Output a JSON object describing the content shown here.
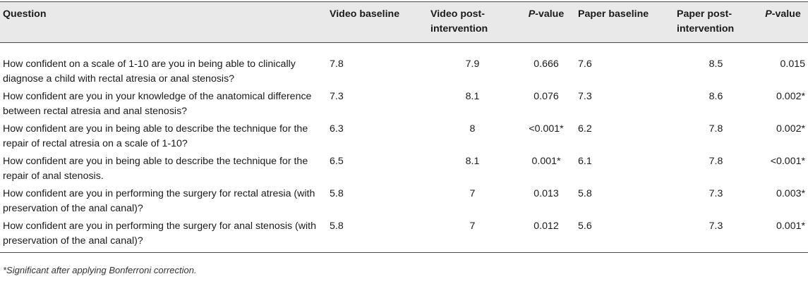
{
  "headers": {
    "question": "Question",
    "video_baseline": "Video baseline",
    "video_post": "Video post-intervention",
    "pvalue_italic": "P",
    "pvalue_rest": "-value",
    "paper_baseline": "Paper baseline",
    "paper_post": "Paper post-intervention"
  },
  "rows": [
    {
      "question": "How confident on a scale of 1-10 are you in being able to clinically diagnose a child with rectal atresia or anal stenosis?",
      "video_baseline": "7.8",
      "video_post": "7.9",
      "video_p": "0.666",
      "paper_baseline": "7.6",
      "paper_post": "8.5",
      "paper_p": "0.015"
    },
    {
      "question": "How confident are you in your knowledge of the anatomical difference between rectal atresia and anal stenosis?",
      "video_baseline": "7.3",
      "video_post": "8.1",
      "video_p": "0.076",
      "paper_baseline": "7.3",
      "paper_post": "8.6",
      "paper_p": "0.002*"
    },
    {
      "question": "How confident are you in being able to describe the technique for the repair of rectal atresia on a scale of 1-10?",
      "video_baseline": "6.3",
      "video_post": "8",
      "video_p": "<0.001*",
      "paper_baseline": "6.2",
      "paper_post": "7.8",
      "paper_p": "0.002*"
    },
    {
      "question": "How confident are you in being able to describe the technique for the repair of anal stenosis.",
      "video_baseline": "6.5",
      "video_post": "8.1",
      "video_p": "0.001*",
      "paper_baseline": "6.1",
      "paper_post": "7.8",
      "paper_p": "<0.001*"
    },
    {
      "question": "How confident are you in performing the surgery for rectal atresia (with preservation of the anal canal)?",
      "video_baseline": "5.8",
      "video_post": "7",
      "video_p": "0.013",
      "paper_baseline": "5.8",
      "paper_post": "7.3",
      "paper_p": "0.003*"
    },
    {
      "question": "How confident are you in performing the surgery for anal stenosis (with preservation of the anal canal)?",
      "video_baseline": "5.8",
      "video_post": "7",
      "video_p": "0.012",
      "paper_baseline": "5.6",
      "paper_post": "7.3",
      "paper_p": "0.001*"
    }
  ],
  "footnote": "*Significant after applying Bonferroni correction."
}
